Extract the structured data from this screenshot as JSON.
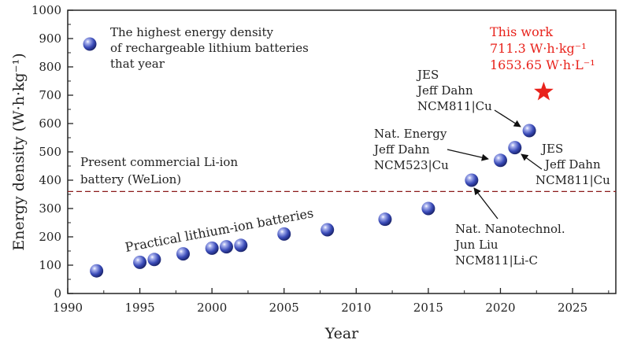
{
  "chart_data": {
    "type": "scatter",
    "xlabel": "Year",
    "ylabel": "Energy density (W·h·kg⁻¹)",
    "xlim": [
      1990,
      2028
    ],
    "ylim": [
      0,
      1000
    ],
    "x_ticks": [
      1990,
      1995,
      2000,
      2005,
      2010,
      2015,
      2020,
      2025
    ],
    "y_ticks": [
      0,
      100,
      200,
      300,
      400,
      500,
      600,
      700,
      800,
      900,
      1000
    ],
    "grid": false,
    "legend": {
      "placement": "top-left",
      "lines": [
        "The highest energy density",
        "of rechargeable lithium batteries",
        "that year"
      ]
    },
    "series": [
      {
        "marker": "blue-sphere",
        "color": "#3a4bb8",
        "points": [
          {
            "x": 1992,
            "y": 80
          },
          {
            "x": 1995,
            "y": 110
          },
          {
            "x": 1996,
            "y": 120
          },
          {
            "x": 1998,
            "y": 140
          },
          {
            "x": 2000,
            "y": 160
          },
          {
            "x": 2001,
            "y": 165
          },
          {
            "x": 2002,
            "y": 170
          },
          {
            "x": 2005,
            "y": 210
          },
          {
            "x": 2008,
            "y": 225
          },
          {
            "x": 2012,
            "y": 262
          },
          {
            "x": 2015,
            "y": 300
          },
          {
            "x": 2018,
            "y": 400
          },
          {
            "x": 2020,
            "y": 470
          },
          {
            "x": 2021,
            "y": 515
          },
          {
            "x": 2022,
            "y": 575
          }
        ]
      },
      {
        "marker": "red-star",
        "color": "#e8221b",
        "points": [
          {
            "x": 2023,
            "y": 711.3
          }
        ]
      }
    ],
    "reference_line": {
      "y": 360,
      "color": "#8b1a1a",
      "style": "dashed",
      "label": [
        "Present commercial Li-ion",
        "battery (WeLion)"
      ]
    },
    "trend_label": "Practical lithium-ion batteries",
    "annotations": [
      {
        "lines": [
          "This work",
          "711.3 W·h·kg⁻¹",
          "1653.65 W·h·L⁻¹"
        ],
        "color": "#e8221b"
      },
      {
        "lines": [
          "JES",
          "Jeff Dahn",
          "NCM811|Cu"
        ],
        "target": {
          "x": 2022,
          "y": 575
        }
      },
      {
        "lines": [
          "Nat. Energy",
          "Jeff Dahn",
          "NCM523|Cu"
        ],
        "target": {
          "x": 2020,
          "y": 470
        }
      },
      {
        "lines": [
          "JES",
          "Jeff Dahn",
          "NCM811|Cu"
        ],
        "target": {
          "x": 2021,
          "y": 515
        }
      },
      {
        "lines": [
          "Nat. Nanotechnol.",
          "Jun Liu",
          "NCM811|Li-C"
        ],
        "target": {
          "x": 2018,
          "y": 400
        }
      }
    ]
  }
}
